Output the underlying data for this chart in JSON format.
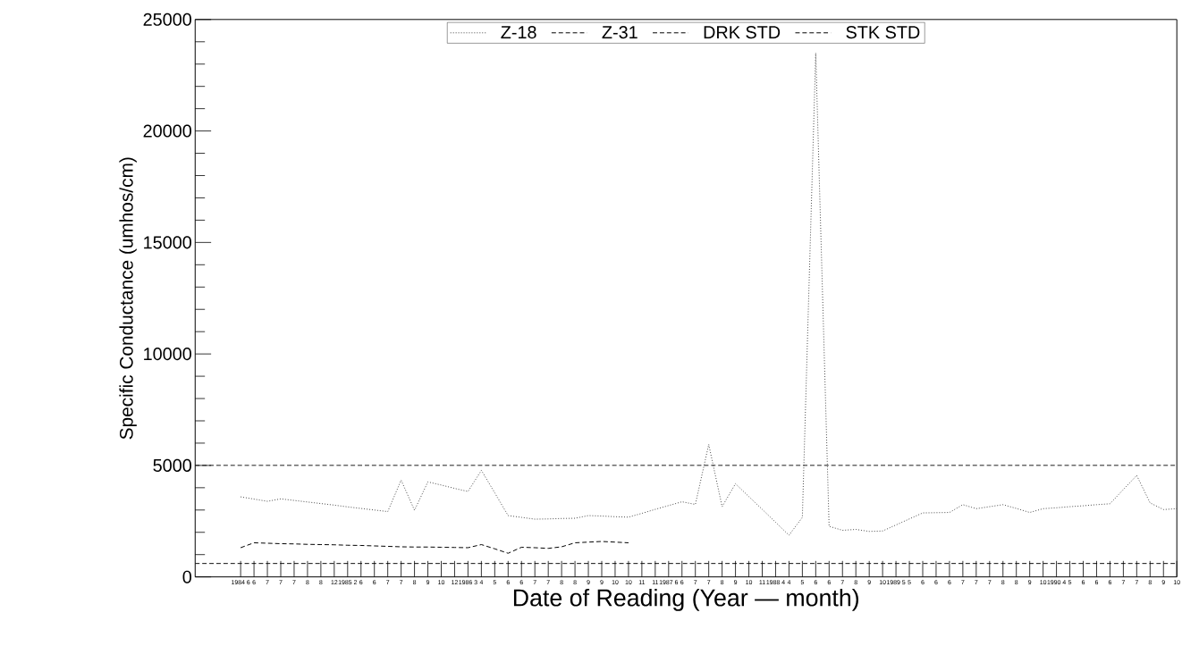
{
  "chart_data": {
    "type": "line",
    "xlabel": "Date of Reading (Year — month)",
    "ylabel": "Specific Conductance (umhos/cm)",
    "categories": [
      "1984 6",
      "6",
      "7",
      "7",
      "7",
      "8",
      "8",
      "12",
      "1985 2",
      "6",
      "6",
      "7",
      "7",
      "8",
      "9",
      "10",
      "12",
      "1986 3",
      "4",
      "5",
      "6",
      "6",
      "7",
      "7",
      "8",
      "8",
      "9",
      "9",
      "10",
      "10",
      "11",
      "11",
      "1987 6",
      "6",
      "7",
      "7",
      "8",
      "9",
      "10",
      "11",
      "1988 4",
      "4",
      "5",
      "6",
      "6",
      "7",
      "8",
      "9",
      "10",
      "1989 5",
      "5",
      "6",
      "6",
      "6",
      "7",
      "7",
      "7",
      "8",
      "8",
      "9",
      "10",
      "1990 4",
      "5",
      "6",
      "6",
      "6",
      "7",
      "7",
      "8",
      "9",
      "10"
    ],
    "ylim": [
      0,
      25000
    ],
    "yticks": [
      0,
      5000,
      10000,
      15000,
      20000,
      25000
    ],
    "legend": "top",
    "marker": "none",
    "series": [
      {
        "name": "Z-18",
        "color": "#444444",
        "line_style": "dotted",
        "values": [
          3590,
          3490,
          3390,
          3500,
          3430,
          3360,
          3290,
          3220,
          3140,
          3070,
          3000,
          2930,
          4340,
          2990,
          4260,
          4120,
          3970,
          3830,
          4780,
          3770,
          2750,
          2670,
          2590,
          2600,
          2620,
          2630,
          2750,
          2730,
          2700,
          2680,
          2850,
          3030,
          3200,
          3370,
          3250,
          5940,
          3150,
          4180,
          3600,
          3030,
          2450,
          1870,
          2670,
          23500,
          2270,
          2090,
          2130,
          2040,
          2060,
          2330,
          2600,
          2870,
          2880,
          2890,
          3240,
          3060,
          3150,
          3240,
          3070,
          2890,
          3060,
          3100,
          3150,
          3190,
          3240,
          3280,
          3920,
          4550,
          3320,
          3020,
          3060
        ]
      },
      {
        "name": "Z-31",
        "color": "#000000",
        "line_style": "dashed",
        "values": [
          1310,
          1530,
          1510,
          1490,
          1480,
          1460,
          1450,
          1440,
          1420,
          1410,
          1390,
          1370,
          1350,
          1340,
          1340,
          1330,
          1320,
          1310,
          1450,
          1260,
          1060,
          1330,
          1310,
          1280,
          1350,
          1530,
          1560,
          1590,
          1560,
          1530,
          null,
          null,
          null,
          null,
          null,
          null,
          null,
          null,
          null,
          null,
          null,
          null,
          null,
          null,
          null,
          null,
          null,
          null,
          null,
          null,
          null,
          null,
          null,
          null,
          null,
          null,
          null,
          null,
          null,
          null,
          null,
          null,
          null,
          null,
          null,
          null,
          null,
          null,
          null,
          null,
          null
        ]
      }
    ],
    "ref_lines": [
      {
        "axis": "y",
        "value": 5000,
        "label": "DRK STD",
        "line_style": "dashed",
        "color": "#000000"
      },
      {
        "axis": "y",
        "value": 600,
        "label": "STK STD",
        "line_style": "dashed",
        "color": "#000000"
      }
    ]
  }
}
